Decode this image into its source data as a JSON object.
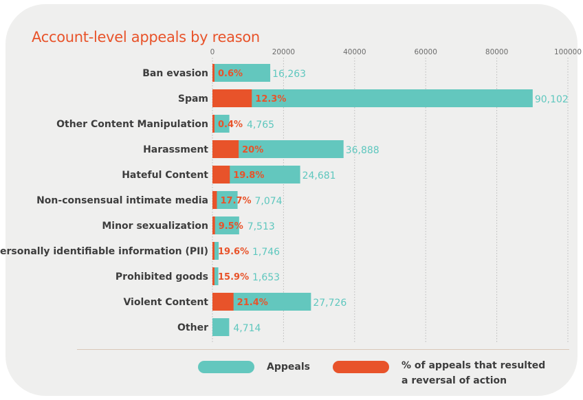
{
  "colors": {
    "appeals": "#63c7be",
    "reversal": "#e8532a"
  },
  "chart_data": {
    "type": "bar",
    "orientation": "horizontal",
    "title": "Account-level appeals by reason",
    "xlim": [
      0,
      100000
    ],
    "ticks": [
      0,
      20000,
      40000,
      60000,
      80000,
      100000
    ],
    "tick_labels": [
      "0",
      "20000",
      "40000",
      "60000",
      "80000",
      "100000"
    ],
    "grid": "vertical dotted",
    "categories": [
      "Ban evasion",
      "Spam",
      "Other Content Manipulation",
      "Harassment",
      "Hateful Content",
      "Non-consensual intimate media",
      "Minor sexualization",
      "Personally identifiable information (PII)",
      "Prohibited goods",
      "Violent Content",
      "Other"
    ],
    "series": [
      {
        "name": "Appeals",
        "values": [
          16263,
          90102,
          4765,
          36888,
          24681,
          7074,
          7513,
          1746,
          1653,
          27726,
          4714
        ],
        "labels": [
          "16,263",
          "90,102",
          "4,765",
          "36,888",
          "24,681",
          "7,074",
          "7,513",
          "1,746",
          "1,653",
          "27,726",
          "4,714"
        ]
      },
      {
        "name": "% of appeals that resulted a reversal of action",
        "values": [
          0.6,
          12.3,
          0.4,
          20,
          19.8,
          17.7,
          9.5,
          19.6,
          15.9,
          21.4,
          null
        ],
        "labels": [
          "0.6%",
          "12.3%",
          "0.4%",
          "20%",
          "19.8%",
          "17.7%",
          "9.5%",
          "19.6%",
          "15.9%",
          "21.4%",
          ""
        ]
      }
    ],
    "legend": {
      "position": "bottom",
      "appeals_label": "Appeals",
      "reversal_label_line1": "% of appeals that resulted",
      "reversal_label_line2": "a reversal of action"
    }
  }
}
